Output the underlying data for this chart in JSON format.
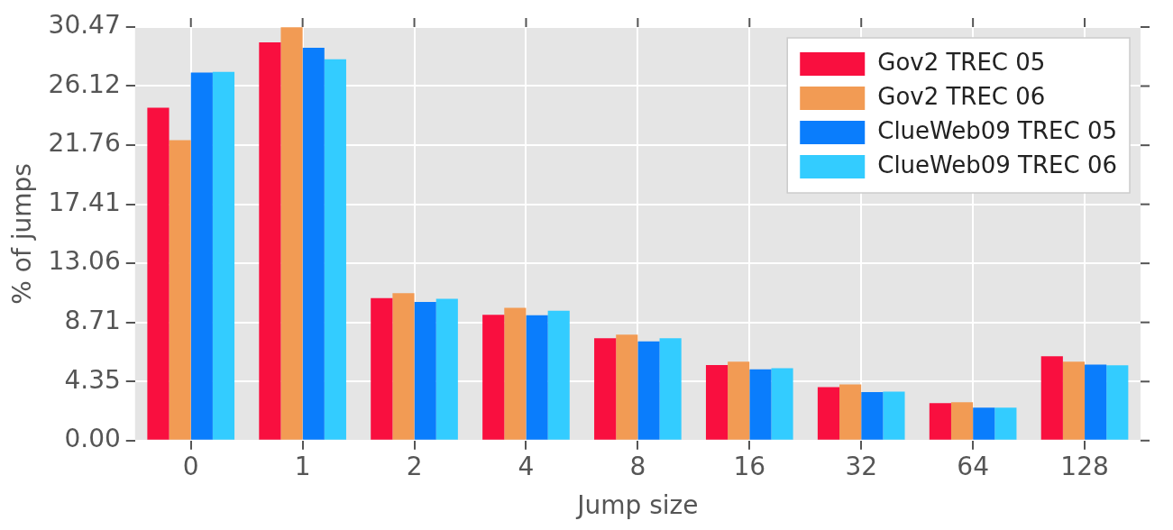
{
  "chart_data": {
    "type": "bar",
    "xlabel": "Jump size",
    "ylabel": "% of jumps",
    "categories": [
      "0",
      "1",
      "2",
      "4",
      "8",
      "16",
      "32",
      "64",
      "128"
    ],
    "series": [
      {
        "name": "Gov2 TREC 05",
        "color": "#f90f3f",
        "values": [
          24.53,
          29.34,
          10.49,
          9.27,
          7.54,
          5.57,
          3.93,
          2.76,
          6.22
        ]
      },
      {
        "name": "Gov2 TREC 06",
        "color": "#f29b54",
        "values": [
          22.13,
          30.45,
          10.87,
          9.79,
          7.81,
          5.81,
          4.14,
          2.82,
          5.81
        ]
      },
      {
        "name": "ClueWeb09 TREC 05",
        "color": "#0a7dfc",
        "values": [
          27.11,
          28.94,
          10.21,
          9.23,
          7.31,
          5.25,
          3.58,
          2.43,
          5.6
        ]
      },
      {
        "name": "ClueWeb09 TREC 06",
        "color": "#33ccff",
        "values": [
          27.16,
          28.1,
          10.44,
          9.56,
          7.54,
          5.34,
          3.61,
          2.43,
          5.55
        ]
      }
    ],
    "ylim": [
      0,
      30.47
    ],
    "yticks": [
      {
        "value": 0,
        "label": "0.00"
      },
      4.35,
      8.71,
      13.06,
      17.41,
      21.76,
      26.12,
      30.47
    ],
    "grid": true,
    "legend": "top right"
  }
}
